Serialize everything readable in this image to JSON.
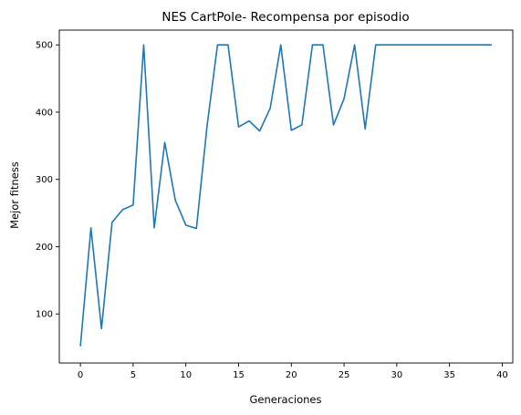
{
  "chart_data": {
    "type": "line",
    "title": "NES CartPole- Recompensa por episodio",
    "xlabel": "Generaciones",
    "ylabel": "Mejor fitness",
    "xlim": [
      -2,
      41
    ],
    "ylim": [
      27,
      522
    ],
    "xticks": [
      0,
      5,
      10,
      15,
      20,
      25,
      30,
      35,
      40
    ],
    "yticks": [
      100,
      200,
      300,
      400,
      500
    ],
    "grid": false,
    "line_color": "#1f77b4",
    "series": [
      {
        "x": [
          0,
          1,
          2,
          3,
          4,
          5,
          6,
          7,
          8,
          9,
          10,
          11,
          12,
          13,
          14,
          15,
          16,
          17,
          18,
          19,
          20,
          21,
          22,
          23,
          24,
          25,
          26,
          27,
          28,
          29,
          30,
          31,
          32,
          33,
          34,
          35,
          36,
          37,
          38,
          39
        ],
        "values": [
          52,
          228,
          78,
          236,
          255,
          262,
          500,
          228,
          355,
          269,
          232,
          227,
          378,
          500,
          500,
          378,
          387,
          372,
          406,
          500,
          373,
          381,
          500,
          500,
          381,
          420,
          500,
          375,
          500,
          500,
          500,
          500,
          500,
          500,
          500,
          500,
          500,
          500,
          500,
          500
        ]
      }
    ]
  }
}
